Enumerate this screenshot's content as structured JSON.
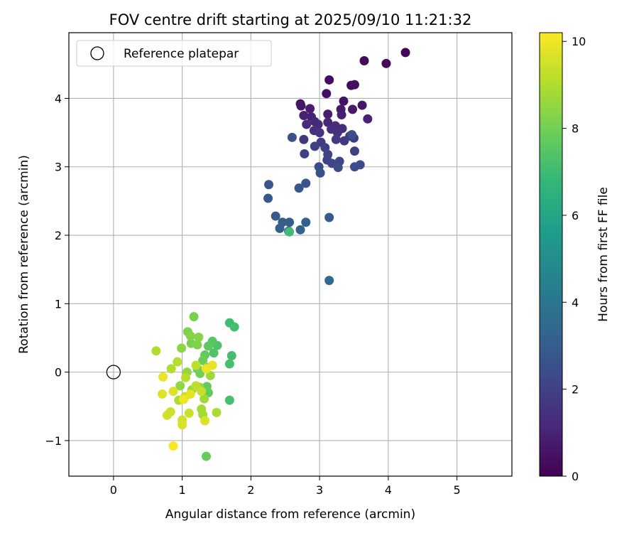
{
  "chart_data": {
    "type": "scatter",
    "title": "FOV centre drift starting at 2025/09/10 11:21:32",
    "xlabel": "Angular distance from reference (arcmin)",
    "ylabel": "Rotation from reference (arcmin)",
    "xlim": [
      -0.65,
      5.8
    ],
    "ylim": [
      -1.52,
      4.96
    ],
    "xticks": [
      0,
      1,
      2,
      3,
      4,
      5
    ],
    "yticks": [
      -1,
      0,
      1,
      2,
      3,
      4
    ],
    "grid": true,
    "legend": {
      "placement": "top-left",
      "entries": [
        {
          "label": "Reference platepar",
          "marker": "open-circle"
        }
      ]
    },
    "reference_point": {
      "x": 0,
      "y": 0
    },
    "colorbar": {
      "label": "Hours from first FF file",
      "range": [
        0,
        10.2
      ],
      "ticks": [
        0,
        2,
        4,
        6,
        8,
        10
      ],
      "colormap": "viridis",
      "colors": [
        "#440154",
        "#482878",
        "#3e4989",
        "#31688e",
        "#26828e",
        "#1f9e89",
        "#35b779",
        "#6ece58",
        "#b5de2b",
        "#fde725"
      ]
    },
    "points": [
      {
        "x": 4.25,
        "y": 4.67,
        "t": 0.1
      },
      {
        "x": 3.65,
        "y": 4.55,
        "t": 0.2
      },
      {
        "x": 3.97,
        "y": 4.51,
        "t": 0.2
      },
      {
        "x": 3.14,
        "y": 4.27,
        "t": 0.3
      },
      {
        "x": 3.46,
        "y": 4.19,
        "t": 0.3
      },
      {
        "x": 3.51,
        "y": 4.2,
        "t": 0.4
      },
      {
        "x": 3.1,
        "y": 4.07,
        "t": 0.4
      },
      {
        "x": 3.35,
        "y": 3.96,
        "t": 0.5
      },
      {
        "x": 2.72,
        "y": 3.92,
        "t": 0.5
      },
      {
        "x": 2.73,
        "y": 3.89,
        "t": 0.6
      },
      {
        "x": 3.62,
        "y": 3.9,
        "t": 0.6
      },
      {
        "x": 3.31,
        "y": 3.84,
        "t": 0.7
      },
      {
        "x": 3.48,
        "y": 3.84,
        "t": 0.7
      },
      {
        "x": 2.86,
        "y": 3.85,
        "t": 0.8
      },
      {
        "x": 3.12,
        "y": 3.77,
        "t": 0.8
      },
      {
        "x": 3.32,
        "y": 3.76,
        "t": 0.9
      },
      {
        "x": 2.77,
        "y": 3.75,
        "t": 0.9
      },
      {
        "x": 2.88,
        "y": 3.73,
        "t": 1.0
      },
      {
        "x": 3.7,
        "y": 3.7,
        "t": 1.0
      },
      {
        "x": 2.93,
        "y": 3.66,
        "t": 1.1
      },
      {
        "x": 3.12,
        "y": 3.65,
        "t": 1.1
      },
      {
        "x": 2.81,
        "y": 3.62,
        "t": 1.2
      },
      {
        "x": 2.98,
        "y": 3.62,
        "t": 1.2
      },
      {
        "x": 3.23,
        "y": 3.6,
        "t": 1.3
      },
      {
        "x": 3.33,
        "y": 3.56,
        "t": 1.3
      },
      {
        "x": 2.92,
        "y": 3.53,
        "t": 1.4
      },
      {
        "x": 3.17,
        "y": 3.55,
        "t": 1.4
      },
      {
        "x": 3.0,
        "y": 3.5,
        "t": 1.5
      },
      {
        "x": 3.26,
        "y": 3.5,
        "t": 1.5
      },
      {
        "x": 3.44,
        "y": 3.45,
        "t": 1.6
      },
      {
        "x": 2.77,
        "y": 3.4,
        "t": 1.6
      },
      {
        "x": 3.24,
        "y": 3.4,
        "t": 1.7
      },
      {
        "x": 3.36,
        "y": 3.38,
        "t": 1.7
      },
      {
        "x": 3.5,
        "y": 3.42,
        "t": 1.8
      },
      {
        "x": 3.02,
        "y": 3.36,
        "t": 1.8
      },
      {
        "x": 2.93,
        "y": 3.3,
        "t": 1.9
      },
      {
        "x": 3.08,
        "y": 3.28,
        "t": 1.9
      },
      {
        "x": 3.51,
        "y": 3.23,
        "t": 2.0
      },
      {
        "x": 2.78,
        "y": 3.19,
        "t": 2.0
      },
      {
        "x": 3.12,
        "y": 3.18,
        "t": 2.1
      },
      {
        "x": 3.11,
        "y": 3.1,
        "t": 2.1
      },
      {
        "x": 3.29,
        "y": 3.08,
        "t": 2.2
      },
      {
        "x": 3.18,
        "y": 3.05,
        "t": 2.2
      },
      {
        "x": 3.59,
        "y": 3.03,
        "t": 2.3
      },
      {
        "x": 3.51,
        "y": 3.0,
        "t": 2.3
      },
      {
        "x": 3.27,
        "y": 2.99,
        "t": 2.4
      },
      {
        "x": 2.99,
        "y": 3.0,
        "t": 2.4
      },
      {
        "x": 3.01,
        "y": 2.91,
        "t": 2.5
      },
      {
        "x": 3.47,
        "y": 3.47,
        "t": 2.5
      },
      {
        "x": 2.6,
        "y": 3.43,
        "t": 2.6
      },
      {
        "x": 2.26,
        "y": 2.74,
        "t": 2.7
      },
      {
        "x": 2.8,
        "y": 2.76,
        "t": 2.7
      },
      {
        "x": 2.7,
        "y": 2.69,
        "t": 2.8
      },
      {
        "x": 2.25,
        "y": 2.54,
        "t": 2.8
      },
      {
        "x": 2.36,
        "y": 2.28,
        "t": 2.9
      },
      {
        "x": 3.14,
        "y": 2.26,
        "t": 2.9
      },
      {
        "x": 2.46,
        "y": 2.19,
        "t": 3.0
      },
      {
        "x": 2.56,
        "y": 2.19,
        "t": 3.0
      },
      {
        "x": 2.8,
        "y": 2.19,
        "t": 3.1
      },
      {
        "x": 2.42,
        "y": 2.1,
        "t": 3.1
      },
      {
        "x": 2.72,
        "y": 2.08,
        "t": 3.2
      },
      {
        "x": 2.55,
        "y": 2.06,
        "t": 3.3
      },
      {
        "x": 3.14,
        "y": 1.34,
        "t": 3.4
      },
      {
        "x": 2.56,
        "y": 2.05,
        "t": 7.0
      },
      {
        "x": 1.69,
        "y": 0.72,
        "t": 7.0
      },
      {
        "x": 1.76,
        "y": 0.66,
        "t": 7.1
      },
      {
        "x": 1.72,
        "y": 0.24,
        "t": 7.1
      },
      {
        "x": 1.69,
        "y": 0.12,
        "t": 7.2
      },
      {
        "x": 1.69,
        "y": -0.41,
        "t": 7.2
      },
      {
        "x": 1.51,
        "y": 0.39,
        "t": 7.3
      },
      {
        "x": 1.46,
        "y": 0.28,
        "t": 7.4
      },
      {
        "x": 1.44,
        "y": 0.45,
        "t": 7.5
      },
      {
        "x": 1.38,
        "y": 0.38,
        "t": 7.6
      },
      {
        "x": 1.33,
        "y": 0.25,
        "t": 7.7
      },
      {
        "x": 1.38,
        "y": -0.3,
        "t": 7.7
      },
      {
        "x": 1.36,
        "y": -0.21,
        "t": 7.8
      },
      {
        "x": 1.35,
        "y": -1.23,
        "t": 7.8
      },
      {
        "x": 1.3,
        "y": 0.17,
        "t": 7.9
      },
      {
        "x": 1.26,
        "y": -0.02,
        "t": 8.0
      },
      {
        "x": 1.22,
        "y": 0.05,
        "t": 8.0
      },
      {
        "x": 1.17,
        "y": 0.81,
        "t": 8.1
      },
      {
        "x": 1.13,
        "y": 0.42,
        "t": 8.1
      },
      {
        "x": 1.22,
        "y": 0.4,
        "t": 8.2
      },
      {
        "x": 1.08,
        "y": 0.59,
        "t": 8.2
      },
      {
        "x": 1.12,
        "y": 0.53,
        "t": 8.3
      },
      {
        "x": 1.24,
        "y": 0.51,
        "t": 8.3
      },
      {
        "x": 0.99,
        "y": 0.35,
        "t": 8.4
      },
      {
        "x": 1.36,
        "y": 0.07,
        "t": 8.4
      },
      {
        "x": 1.07,
        "y": 0.0,
        "t": 8.5
      },
      {
        "x": 0.97,
        "y": -0.2,
        "t": 8.5
      },
      {
        "x": 1.14,
        "y": -0.26,
        "t": 8.6
      },
      {
        "x": 1.25,
        "y": -0.22,
        "t": 8.6
      },
      {
        "x": 1.41,
        "y": -0.05,
        "t": 8.7
      },
      {
        "x": 1.32,
        "y": -0.39,
        "t": 8.7
      },
      {
        "x": 1.28,
        "y": -0.54,
        "t": 8.8
      },
      {
        "x": 1.3,
        "y": -0.62,
        "t": 8.8
      },
      {
        "x": 1.5,
        "y": -0.59,
        "t": 8.9
      },
      {
        "x": 0.95,
        "y": -0.41,
        "t": 8.9
      },
      {
        "x": 0.62,
        "y": 0.31,
        "t": 9.0
      },
      {
        "x": 0.84,
        "y": 0.05,
        "t": 9.0
      },
      {
        "x": 0.93,
        "y": 0.15,
        "t": 9.1
      },
      {
        "x": 1.05,
        "y": -0.08,
        "t": 9.1
      },
      {
        "x": 1.2,
        "y": 0.1,
        "t": 9.2
      },
      {
        "x": 1.2,
        "y": -0.2,
        "t": 9.2
      },
      {
        "x": 1.28,
        "y": -0.28,
        "t": 9.3
      },
      {
        "x": 1.04,
        "y": -0.36,
        "t": 9.3
      },
      {
        "x": 1.1,
        "y": -0.6,
        "t": 9.4
      },
      {
        "x": 0.83,
        "y": -0.58,
        "t": 9.4
      },
      {
        "x": 0.78,
        "y": -0.63,
        "t": 9.5
      },
      {
        "x": 1.0,
        "y": -0.7,
        "t": 9.5
      },
      {
        "x": 1.0,
        "y": -0.77,
        "t": 9.6
      },
      {
        "x": 1.33,
        "y": -0.71,
        "t": 9.6
      },
      {
        "x": 0.71,
        "y": -0.32,
        "t": 9.7
      },
      {
        "x": 0.87,
        "y": -0.28,
        "t": 9.7
      },
      {
        "x": 1.12,
        "y": -0.32,
        "t": 9.8
      },
      {
        "x": 1.44,
        "y": 0.1,
        "t": 9.8
      },
      {
        "x": 1.35,
        "y": 0.05,
        "t": 9.9
      },
      {
        "x": 0.72,
        "y": -0.07,
        "t": 9.9
      },
      {
        "x": 1.02,
        "y": -0.4,
        "t": 10.0
      },
      {
        "x": 0.87,
        "y": -1.08,
        "t": 10.1
      }
    ]
  }
}
